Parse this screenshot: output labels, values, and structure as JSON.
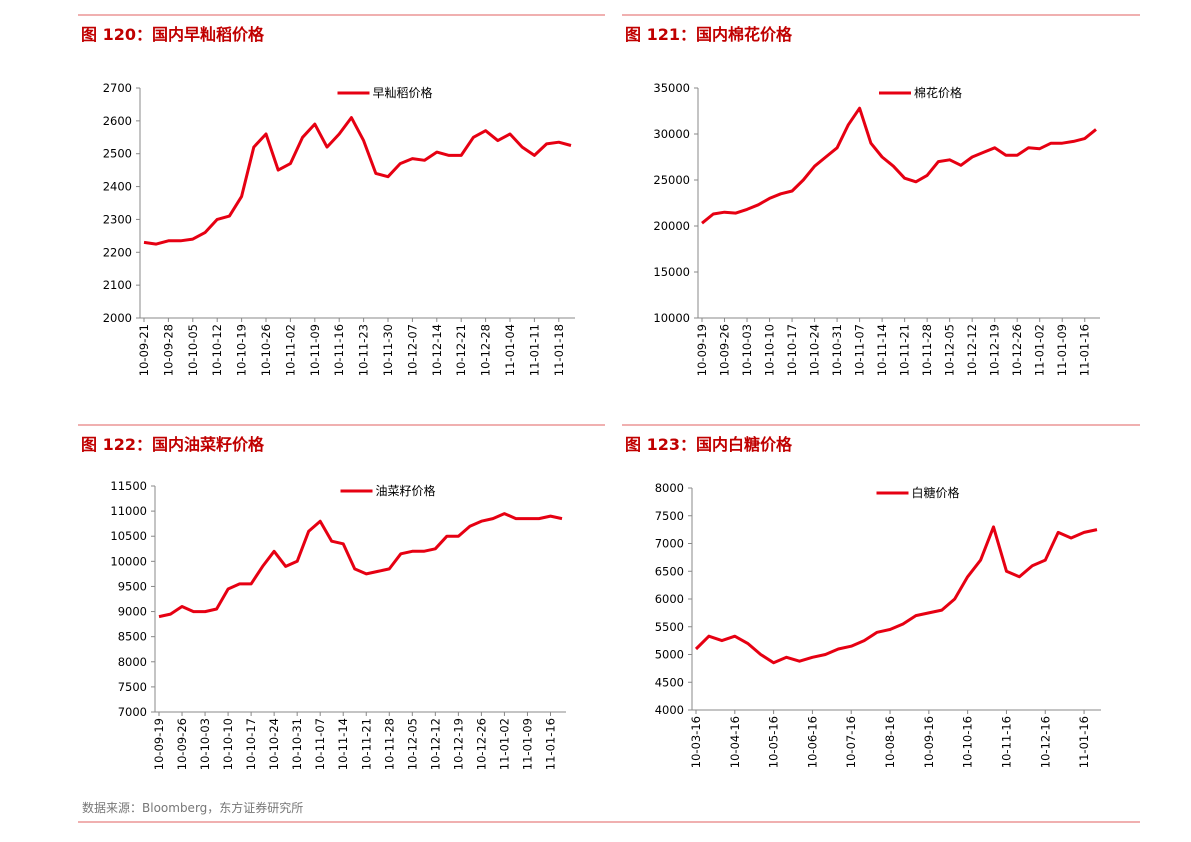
{
  "chart_data": [
    {
      "type": "line",
      "title": "图 120：国内早籼稻价格",
      "categories": [
        "10-09-21",
        null,
        "10-09-28",
        null,
        "10-10-05",
        null,
        "10-10-12",
        null,
        "10-10-19",
        null,
        "10-10-26",
        null,
        "10-11-02",
        null,
        "10-11-09",
        null,
        "10-11-16",
        null,
        "10-11-23",
        null,
        "10-11-30",
        null,
        "10-12-07",
        null,
        "10-12-14",
        null,
        "10-12-21",
        null,
        "10-12-28",
        null,
        "11-01-04",
        null,
        "11-01-11",
        null,
        "11-01-18",
        null
      ],
      "series": [
        {
          "name": "早籼稻价格",
          "color": "#e60012",
          "values": [
            2230,
            2225,
            2235,
            2235,
            2240,
            2260,
            2300,
            2310,
            2370,
            2520,
            2560,
            2450,
            2470,
            2550,
            2590,
            2520,
            2560,
            2610,
            2540,
            2440,
            2430,
            2470,
            2485,
            2480,
            2505,
            2495,
            2495,
            2550,
            2570,
            2540,
            2560,
            2520,
            2495,
            2530,
            2535,
            2525
          ]
        }
      ],
      "ylim": [
        2000,
        2700
      ],
      "yticks": [
        2000,
        2100,
        2200,
        2300,
        2400,
        2500,
        2600,
        2700
      ]
    },
    {
      "type": "line",
      "title": "图 121：国内棉花价格",
      "categories": [
        "10-09-19",
        null,
        "10-09-26",
        null,
        "10-10-03",
        null,
        "10-10-10",
        null,
        "10-10-17",
        null,
        "10-10-24",
        null,
        "10-10-31",
        null,
        "10-11-07",
        null,
        "10-11-14",
        null,
        "10-11-21",
        null,
        "10-11-28",
        null,
        "10-12-05",
        null,
        "10-12-12",
        null,
        "10-12-19",
        null,
        "10-12-26",
        null,
        "11-01-02",
        null,
        "11-01-09",
        null,
        "11-01-16",
        null
      ],
      "series": [
        {
          "name": "棉花价格",
          "color": "#e60012",
          "values": [
            20300,
            21300,
            21500,
            21400,
            21800,
            22300,
            23000,
            23500,
            23800,
            25000,
            26500,
            27500,
            28500,
            31000,
            32800,
            29000,
            27500,
            26500,
            25200,
            24800,
            25500,
            27000,
            27200,
            26600,
            27500,
            28000,
            28500,
            27700,
            27700,
            28500,
            28400,
            29000,
            29000,
            29200,
            29500,
            30500
          ]
        }
      ],
      "ylim": [
        10000,
        35000
      ],
      "yticks": [
        10000,
        15000,
        20000,
        25000,
        30000,
        35000
      ]
    },
    {
      "type": "line",
      "title": "图 122：国内油菜籽价格",
      "categories": [
        "10-09-19",
        null,
        "10-09-26",
        null,
        "10-10-03",
        null,
        "10-10-10",
        null,
        "10-10-17",
        null,
        "10-10-24",
        null,
        "10-10-31",
        null,
        "10-11-07",
        null,
        "10-11-14",
        null,
        "10-11-21",
        null,
        "10-11-28",
        null,
        "10-12-05",
        null,
        "10-12-12",
        null,
        "10-12-19",
        null,
        "10-12-26",
        null,
        "11-01-02",
        null,
        "11-01-09",
        null,
        "11-01-16",
        null
      ],
      "series": [
        {
          "name": "油菜籽价格",
          "color": "#e60012",
          "values": [
            8900,
            8950,
            9100,
            9000,
            9000,
            9050,
            9450,
            9550,
            9550,
            9900,
            10200,
            9900,
            10000,
            10600,
            10800,
            10400,
            10350,
            9850,
            9750,
            9800,
            9850,
            10150,
            10200,
            10200,
            10250,
            10500,
            10500,
            10700,
            10800,
            10850,
            10950,
            10850,
            10850,
            10850,
            10900,
            10850
          ]
        }
      ],
      "ylim": [
        7000,
        11500
      ],
      "yticks": [
        7000,
        7500,
        8000,
        8500,
        9000,
        9500,
        10000,
        10500,
        11000,
        11500
      ]
    },
    {
      "type": "line",
      "title": "图 123：国内白糖价格",
      "categories": [
        "10-03-16",
        null,
        null,
        "10-04-16",
        null,
        null,
        "10-05-16",
        null,
        null,
        "10-06-16",
        null,
        null,
        "10-07-16",
        null,
        null,
        "10-08-16",
        null,
        null,
        "10-09-16",
        null,
        null,
        "10-10-16",
        null,
        null,
        "10-11-16",
        null,
        null,
        "10-12-16",
        null,
        null,
        "11-01-16",
        null
      ],
      "series": [
        {
          "name": "白糖价格",
          "color": "#e60012",
          "values": [
            5100,
            5330,
            5250,
            5330,
            5200,
            5000,
            4850,
            4950,
            4880,
            4950,
            5000,
            5100,
            5150,
            5250,
            5400,
            5450,
            5550,
            5700,
            5750,
            5800,
            6000,
            6400,
            6700,
            7300,
            6500,
            6400,
            6600,
            6700,
            7200,
            7100,
            7200,
            7250
          ]
        }
      ],
      "ylim": [
        4000,
        8000
      ],
      "yticks": [
        4000,
        4500,
        5000,
        5500,
        6000,
        6500,
        7000,
        7500,
        8000
      ]
    }
  ],
  "source": "数据来源：Bloomberg，东方证券研究所"
}
